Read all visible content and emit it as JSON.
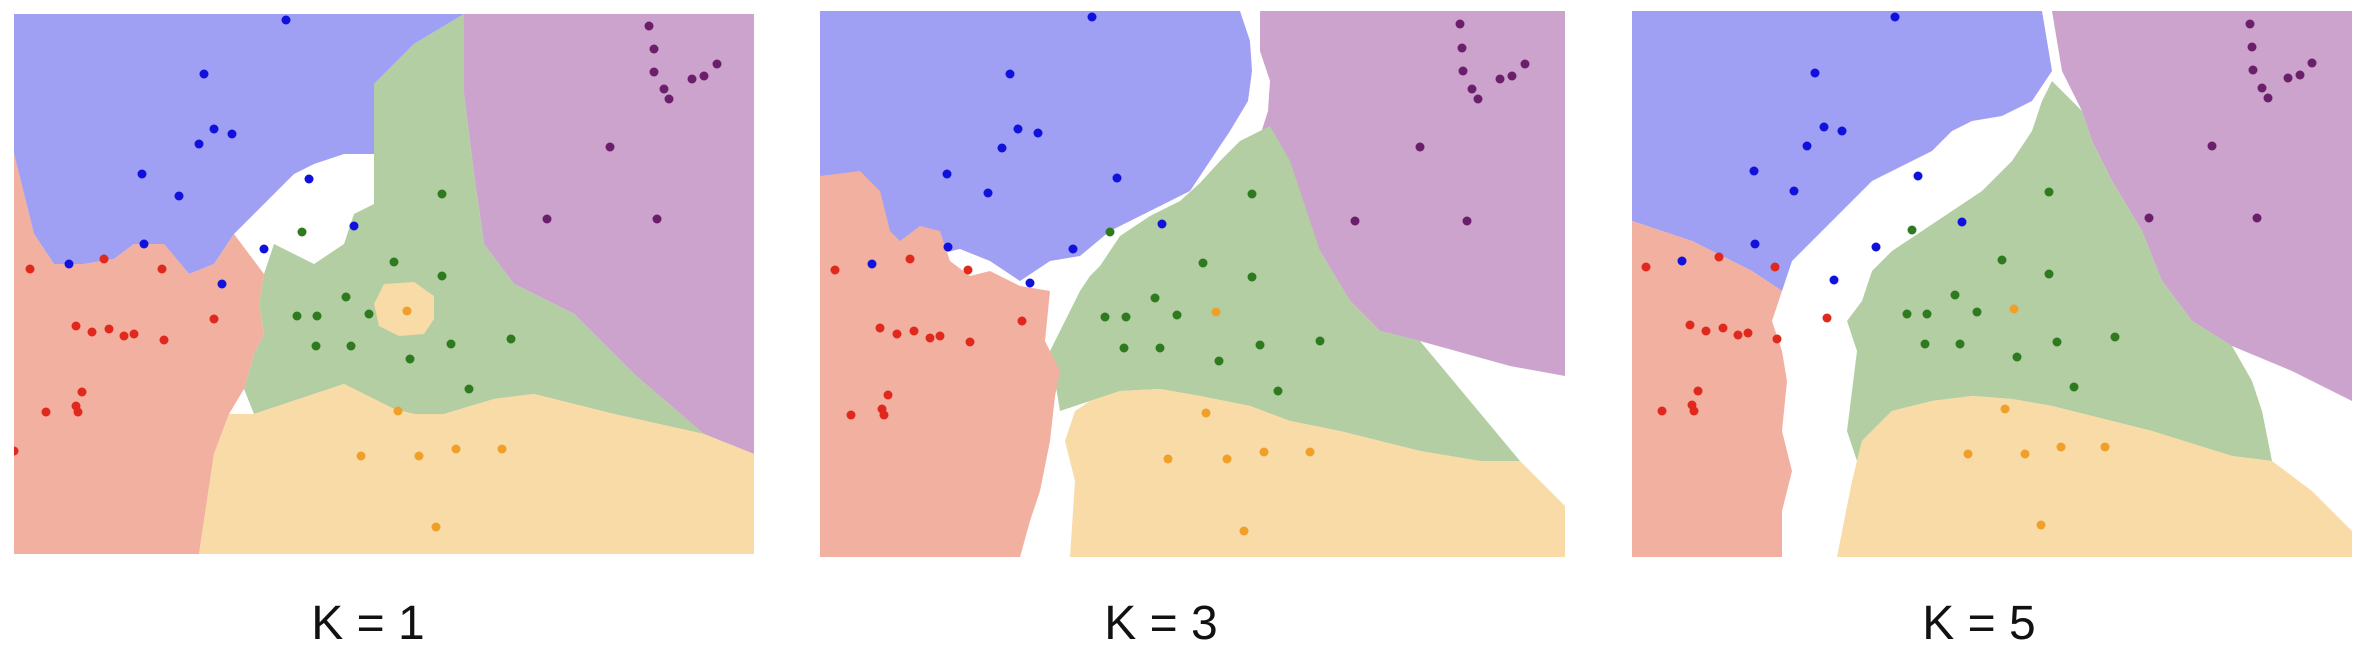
{
  "colors": {
    "blue_region": "#9f9ff4",
    "purple_region": "#cba3cc",
    "green_region": "#b3cea3",
    "red_region": "#f2b0a1",
    "orange_region": "#f8dba6",
    "blue_point": "#1111dd",
    "purple_point": "#6b1f6b",
    "green_point": "#2f7a1f",
    "red_point": "#e0281c",
    "orange_point": "#f0a028",
    "background": "#ffffff"
  },
  "panels": [
    {
      "id": "k1",
      "caption": "K = 1"
    },
    {
      "id": "k3",
      "caption": "K = 3"
    },
    {
      "id": "k5",
      "caption": "K = 5"
    }
  ]
}
